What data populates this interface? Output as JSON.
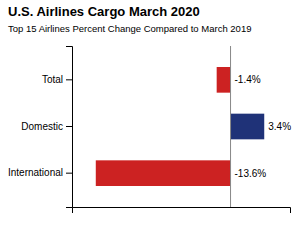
{
  "chart_data": {
    "type": "bar",
    "orientation": "horizontal",
    "title": "U.S. Airlines Cargo March 2020",
    "subtitle": "Top 15 Airlines Percent Change Compared to March 2019",
    "categories": [
      "Total",
      "Domestic",
      "International"
    ],
    "values": [
      -1.4,
      3.4,
      -13.6
    ],
    "value_labels": [
      "-1.4%",
      "3.4%",
      "-13.6%"
    ],
    "colors": [
      "#cc2222",
      "#1f3278",
      "#cc2222"
    ],
    "xlim": [
      -16,
      6
    ],
    "data_labels": true,
    "tick_labels": "y",
    "grid": false
  }
}
